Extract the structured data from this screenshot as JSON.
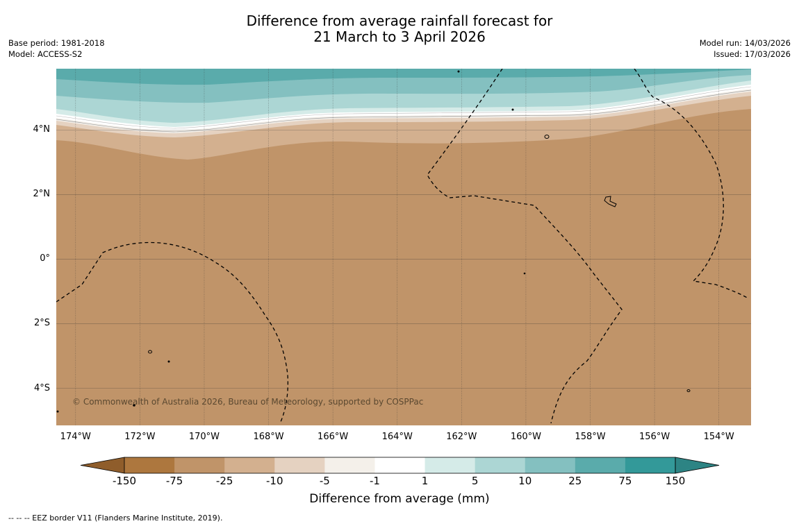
{
  "title": {
    "line1": "Difference from average rainfall forecast for",
    "line2": "21 March to 3 April 2026"
  },
  "meta": {
    "base_period": "Base period: 1981-2018",
    "model": "Model: ACCESS-S2",
    "model_run": "Model run: 14/03/2026",
    "issued": "Issued: 17/03/2026"
  },
  "map": {
    "lon_range": [
      -174.6,
      -153.0
    ],
    "lat_range": [
      -5.15,
      5.9
    ],
    "lat_labels": [
      {
        "value": 4,
        "label": "4°N"
      },
      {
        "value": 2,
        "label": "2°N"
      },
      {
        "value": 0,
        "label": "0°"
      },
      {
        "value": -2,
        "label": "2°S"
      },
      {
        "value": -4,
        "label": "4°S"
      }
    ],
    "lon_labels": [
      {
        "value": -174,
        "label": "174°W"
      },
      {
        "value": -172,
        "label": "172°W"
      },
      {
        "value": -170,
        "label": "170°W"
      },
      {
        "value": -168,
        "label": "168°W"
      },
      {
        "value": -166,
        "label": "166°W"
      },
      {
        "value": -164,
        "label": "164°W"
      },
      {
        "value": -162,
        "label": "162°W"
      },
      {
        "value": -160,
        "label": "160°W"
      },
      {
        "value": -158,
        "label": "158°W"
      },
      {
        "value": -156,
        "label": "156°W"
      },
      {
        "value": -154,
        "label": "154°W"
      }
    ],
    "copyright": "© Commonwealth of Australia 2026, Bureau of Meteorology, supported by COSPPac",
    "background_color": "#c09469"
  },
  "colorbar": {
    "title": "Difference from average (mm)",
    "ticks": [
      "-150",
      "-75",
      "-25",
      "-10",
      "-5",
      "-1",
      "1",
      "5",
      "10",
      "25",
      "75",
      "150"
    ],
    "colors": [
      "#ad773e",
      "#c09469",
      "#d3b08f",
      "#e5d2c1",
      "#f4f0ea",
      "#ffffff",
      "#d5ebe8",
      "#acd6d4",
      "#84c0c0",
      "#5aabab",
      "#339999"
    ],
    "under_color": "#8f5d2b",
    "over_color": "#2d8484"
  },
  "footnote": "--  --  -- EEZ border V11 (Flanders Marine Institute, 2019)."
}
